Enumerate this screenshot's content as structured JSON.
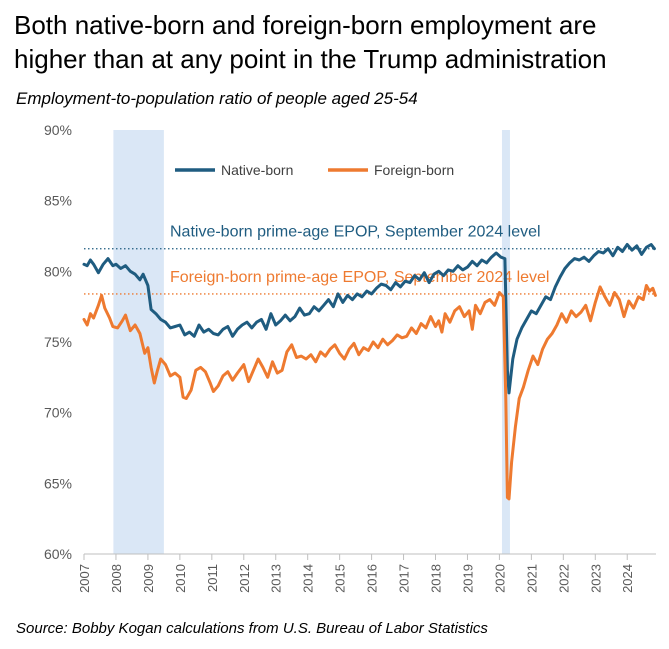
{
  "title": "Both native-born and foreign-born employment are higher than at any point in the Trump administration",
  "subtitle": "Employment-to-population ratio of people aged 25-54",
  "source": "Source: Bobby Kogan calculations from U.S. Bureau of Labor Statistics",
  "chart_data": {
    "type": "line",
    "ylim": [
      60,
      90
    ],
    "xlim": [
      2007.0,
      2024.9
    ],
    "y_ticks": [
      {
        "value": 60,
        "label": "60%"
      },
      {
        "value": 65,
        "label": "65%"
      },
      {
        "value": 70,
        "label": "70%"
      },
      {
        "value": 75,
        "label": "75%"
      },
      {
        "value": 80,
        "label": "80%"
      },
      {
        "value": 85,
        "label": "85%"
      },
      {
        "value": 90,
        "label": "90%"
      }
    ],
    "x_ticks": [
      "2007",
      "2008",
      "2009",
      "2010",
      "2011",
      "2012",
      "2013",
      "2014",
      "2015",
      "2016",
      "2017",
      "2018",
      "2019",
      "2020",
      "2021",
      "2022",
      "2023",
      "2024"
    ],
    "shaded_periods": [
      {
        "start": 2007.92,
        "end": 2009.5
      },
      {
        "start": 2020.08,
        "end": 2020.33
      }
    ],
    "legend_placement": "top-left",
    "colors": {
      "native": "#1f5c80",
      "foreign": "#ee7a30",
      "shade": "#dae7f6",
      "axis": "#bfbfbf",
      "tick_label": "#595959"
    },
    "reference_lines": [
      {
        "value": 81.6,
        "label": "Native-born prime-age EPOP, September 2024 level",
        "color": "#1f5c80"
      },
      {
        "value": 78.4,
        "label": "Foreign-born prime-age EPOP, September 2024 level",
        "color": "#ee7a30"
      }
    ],
    "series": [
      {
        "name": "Native-born",
        "color": "#1f5c80",
        "points": [
          [
            2007.0,
            80.5
          ],
          [
            2007.1,
            80.4
          ],
          [
            2007.2,
            80.8
          ],
          [
            2007.3,
            80.5
          ],
          [
            2007.45,
            79.9
          ],
          [
            2007.6,
            80.5
          ],
          [
            2007.75,
            80.9
          ],
          [
            2007.9,
            80.4
          ],
          [
            2008.0,
            80.5
          ],
          [
            2008.15,
            80.2
          ],
          [
            2008.3,
            80.4
          ],
          [
            2008.45,
            80.0
          ],
          [
            2008.6,
            79.8
          ],
          [
            2008.75,
            79.4
          ],
          [
            2008.85,
            79.8
          ],
          [
            2009.0,
            79.0
          ],
          [
            2009.1,
            77.3
          ],
          [
            2009.25,
            77.0
          ],
          [
            2009.4,
            76.6
          ],
          [
            2009.55,
            76.4
          ],
          [
            2009.7,
            76.0
          ],
          [
            2009.85,
            76.1
          ],
          [
            2010.0,
            76.2
          ],
          [
            2010.15,
            75.5
          ],
          [
            2010.3,
            75.7
          ],
          [
            2010.45,
            75.4
          ],
          [
            2010.6,
            76.2
          ],
          [
            2010.75,
            75.7
          ],
          [
            2010.9,
            75.9
          ],
          [
            2011.05,
            75.6
          ],
          [
            2011.2,
            75.5
          ],
          [
            2011.35,
            75.9
          ],
          [
            2011.5,
            76.1
          ],
          [
            2011.65,
            75.4
          ],
          [
            2011.8,
            75.9
          ],
          [
            2011.95,
            76.2
          ],
          [
            2012.1,
            76.4
          ],
          [
            2012.25,
            76.0
          ],
          [
            2012.4,
            76.4
          ],
          [
            2012.55,
            76.6
          ],
          [
            2012.7,
            75.9
          ],
          [
            2012.85,
            77.0
          ],
          [
            2013.0,
            76.2
          ],
          [
            2013.15,
            76.5
          ],
          [
            2013.3,
            76.9
          ],
          [
            2013.45,
            76.5
          ],
          [
            2013.6,
            76.8
          ],
          [
            2013.75,
            77.4
          ],
          [
            2013.9,
            76.9
          ],
          [
            2014.05,
            77.0
          ],
          [
            2014.2,
            77.5
          ],
          [
            2014.35,
            77.2
          ],
          [
            2014.5,
            77.6
          ],
          [
            2014.65,
            78.0
          ],
          [
            2014.8,
            77.5
          ],
          [
            2014.95,
            78.4
          ],
          [
            2015.1,
            77.8
          ],
          [
            2015.25,
            78.3
          ],
          [
            2015.4,
            78.0
          ],
          [
            2015.55,
            78.4
          ],
          [
            2015.7,
            78.2
          ],
          [
            2015.85,
            78.6
          ],
          [
            2016.0,
            78.4
          ],
          [
            2016.15,
            78.8
          ],
          [
            2016.3,
            79.1
          ],
          [
            2016.45,
            79.0
          ],
          [
            2016.6,
            78.7
          ],
          [
            2016.75,
            79.2
          ],
          [
            2016.9,
            78.9
          ],
          [
            2017.05,
            79.3
          ],
          [
            2017.2,
            79.2
          ],
          [
            2017.35,
            79.7
          ],
          [
            2017.5,
            79.4
          ],
          [
            2017.65,
            79.9
          ],
          [
            2017.8,
            79.2
          ],
          [
            2017.95,
            79.8
          ],
          [
            2018.1,
            80.0
          ],
          [
            2018.25,
            79.7
          ],
          [
            2018.4,
            80.1
          ],
          [
            2018.55,
            80.0
          ],
          [
            2018.7,
            80.4
          ],
          [
            2018.85,
            80.1
          ],
          [
            2019.0,
            80.3
          ],
          [
            2019.15,
            80.7
          ],
          [
            2019.3,
            80.4
          ],
          [
            2019.45,
            80.8
          ],
          [
            2019.6,
            80.6
          ],
          [
            2019.75,
            81.0
          ],
          [
            2019.9,
            81.3
          ],
          [
            2020.05,
            81.0
          ],
          [
            2020.17,
            80.9
          ],
          [
            2020.25,
            73.0
          ],
          [
            2020.3,
            71.4
          ],
          [
            2020.42,
            73.8
          ],
          [
            2020.55,
            75.2
          ],
          [
            2020.7,
            76.0
          ],
          [
            2020.85,
            76.6
          ],
          [
            2021.0,
            77.2
          ],
          [
            2021.15,
            77.0
          ],
          [
            2021.3,
            77.6
          ],
          [
            2021.45,
            78.2
          ],
          [
            2021.6,
            78.0
          ],
          [
            2021.75,
            78.9
          ],
          [
            2021.9,
            79.6
          ],
          [
            2022.05,
            80.2
          ],
          [
            2022.2,
            80.6
          ],
          [
            2022.35,
            80.9
          ],
          [
            2022.5,
            80.8
          ],
          [
            2022.65,
            81.0
          ],
          [
            2022.8,
            80.7
          ],
          [
            2022.95,
            81.1
          ],
          [
            2023.1,
            81.4
          ],
          [
            2023.25,
            81.3
          ],
          [
            2023.4,
            81.6
          ],
          [
            2023.55,
            81.1
          ],
          [
            2023.7,
            81.7
          ],
          [
            2023.85,
            81.4
          ],
          [
            2024.0,
            81.9
          ],
          [
            2024.15,
            81.5
          ],
          [
            2024.3,
            81.8
          ],
          [
            2024.45,
            81.2
          ],
          [
            2024.6,
            81.7
          ],
          [
            2024.75,
            81.9
          ],
          [
            2024.85,
            81.6
          ]
        ]
      },
      {
        "name": "Foreign-born",
        "color": "#ee7a30",
        "points": [
          [
            2007.0,
            76.6
          ],
          [
            2007.1,
            76.2
          ],
          [
            2007.2,
            77.0
          ],
          [
            2007.3,
            76.7
          ],
          [
            2007.45,
            77.6
          ],
          [
            2007.55,
            78.3
          ],
          [
            2007.65,
            77.4
          ],
          [
            2007.8,
            76.7
          ],
          [
            2007.9,
            76.1
          ],
          [
            2008.05,
            76.0
          ],
          [
            2008.2,
            76.5
          ],
          [
            2008.3,
            76.9
          ],
          [
            2008.45,
            75.8
          ],
          [
            2008.6,
            76.2
          ],
          [
            2008.75,
            75.6
          ],
          [
            2008.9,
            74.2
          ],
          [
            2009.0,
            74.6
          ],
          [
            2009.1,
            73.2
          ],
          [
            2009.2,
            72.1
          ],
          [
            2009.3,
            73.0
          ],
          [
            2009.4,
            73.8
          ],
          [
            2009.55,
            73.4
          ],
          [
            2009.7,
            72.6
          ],
          [
            2009.85,
            72.8
          ],
          [
            2010.0,
            72.5
          ],
          [
            2010.1,
            71.1
          ],
          [
            2010.2,
            71.0
          ],
          [
            2010.35,
            71.6
          ],
          [
            2010.5,
            73.0
          ],
          [
            2010.65,
            73.2
          ],
          [
            2010.8,
            72.9
          ],
          [
            2010.95,
            72.1
          ],
          [
            2011.05,
            71.5
          ],
          [
            2011.2,
            71.9
          ],
          [
            2011.35,
            72.6
          ],
          [
            2011.5,
            72.9
          ],
          [
            2011.65,
            72.3
          ],
          [
            2011.8,
            72.8
          ],
          [
            2012.0,
            73.4
          ],
          [
            2012.15,
            72.2
          ],
          [
            2012.3,
            73.0
          ],
          [
            2012.45,
            73.8
          ],
          [
            2012.6,
            73.2
          ],
          [
            2012.75,
            72.5
          ],
          [
            2012.9,
            73.6
          ],
          [
            2013.05,
            72.8
          ],
          [
            2013.2,
            73.0
          ],
          [
            2013.35,
            74.3
          ],
          [
            2013.5,
            74.8
          ],
          [
            2013.65,
            73.9
          ],
          [
            2013.8,
            74.0
          ],
          [
            2013.95,
            73.8
          ],
          [
            2014.1,
            74.1
          ],
          [
            2014.25,
            73.6
          ],
          [
            2014.4,
            74.3
          ],
          [
            2014.55,
            74.0
          ],
          [
            2014.7,
            74.5
          ],
          [
            2014.85,
            74.8
          ],
          [
            2015.0,
            74.2
          ],
          [
            2015.15,
            73.8
          ],
          [
            2015.3,
            74.5
          ],
          [
            2015.45,
            74.9
          ],
          [
            2015.6,
            74.1
          ],
          [
            2015.75,
            74.6
          ],
          [
            2015.9,
            74.4
          ],
          [
            2016.05,
            75.0
          ],
          [
            2016.2,
            74.6
          ],
          [
            2016.35,
            75.2
          ],
          [
            2016.5,
            74.8
          ],
          [
            2016.65,
            75.1
          ],
          [
            2016.8,
            75.5
          ],
          [
            2016.95,
            75.3
          ],
          [
            2017.1,
            75.4
          ],
          [
            2017.25,
            76.0
          ],
          [
            2017.4,
            75.6
          ],
          [
            2017.55,
            76.3
          ],
          [
            2017.7,
            76.0
          ],
          [
            2017.85,
            76.8
          ],
          [
            2018.0,
            76.1
          ],
          [
            2018.1,
            76.5
          ],
          [
            2018.2,
            75.7
          ],
          [
            2018.3,
            77.0
          ],
          [
            2018.45,
            76.4
          ],
          [
            2018.6,
            77.2
          ],
          [
            2018.75,
            77.5
          ],
          [
            2018.9,
            76.8
          ],
          [
            2019.05,
            77.2
          ],
          [
            2019.15,
            75.9
          ],
          [
            2019.25,
            77.6
          ],
          [
            2019.4,
            77.0
          ],
          [
            2019.55,
            77.8
          ],
          [
            2019.7,
            78.0
          ],
          [
            2019.85,
            77.6
          ],
          [
            2020.0,
            78.5
          ],
          [
            2020.12,
            78.2
          ],
          [
            2020.2,
            71.0
          ],
          [
            2020.25,
            64.0
          ],
          [
            2020.3,
            63.9
          ],
          [
            2020.38,
            66.5
          ],
          [
            2020.5,
            69.0
          ],
          [
            2020.62,
            71.0
          ],
          [
            2020.75,
            71.8
          ],
          [
            2020.9,
            73.0
          ],
          [
            2021.05,
            74.0
          ],
          [
            2021.2,
            73.4
          ],
          [
            2021.35,
            74.5
          ],
          [
            2021.5,
            75.2
          ],
          [
            2021.65,
            75.6
          ],
          [
            2021.8,
            76.2
          ],
          [
            2021.95,
            77.0
          ],
          [
            2022.1,
            76.4
          ],
          [
            2022.25,
            77.2
          ],
          [
            2022.4,
            76.8
          ],
          [
            2022.55,
            77.1
          ],
          [
            2022.7,
            77.6
          ],
          [
            2022.85,
            76.5
          ],
          [
            2023.0,
            77.8
          ],
          [
            2023.15,
            78.9
          ],
          [
            2023.3,
            78.2
          ],
          [
            2023.45,
            77.6
          ],
          [
            2023.6,
            78.5
          ],
          [
            2023.75,
            78.0
          ],
          [
            2023.9,
            76.8
          ],
          [
            2024.05,
            77.9
          ],
          [
            2024.2,
            77.4
          ],
          [
            2024.35,
            78.2
          ],
          [
            2024.5,
            78.0
          ],
          [
            2024.6,
            79.0
          ],
          [
            2024.7,
            78.6
          ],
          [
            2024.8,
            78.8
          ],
          [
            2024.88,
            78.3
          ]
        ]
      }
    ]
  }
}
